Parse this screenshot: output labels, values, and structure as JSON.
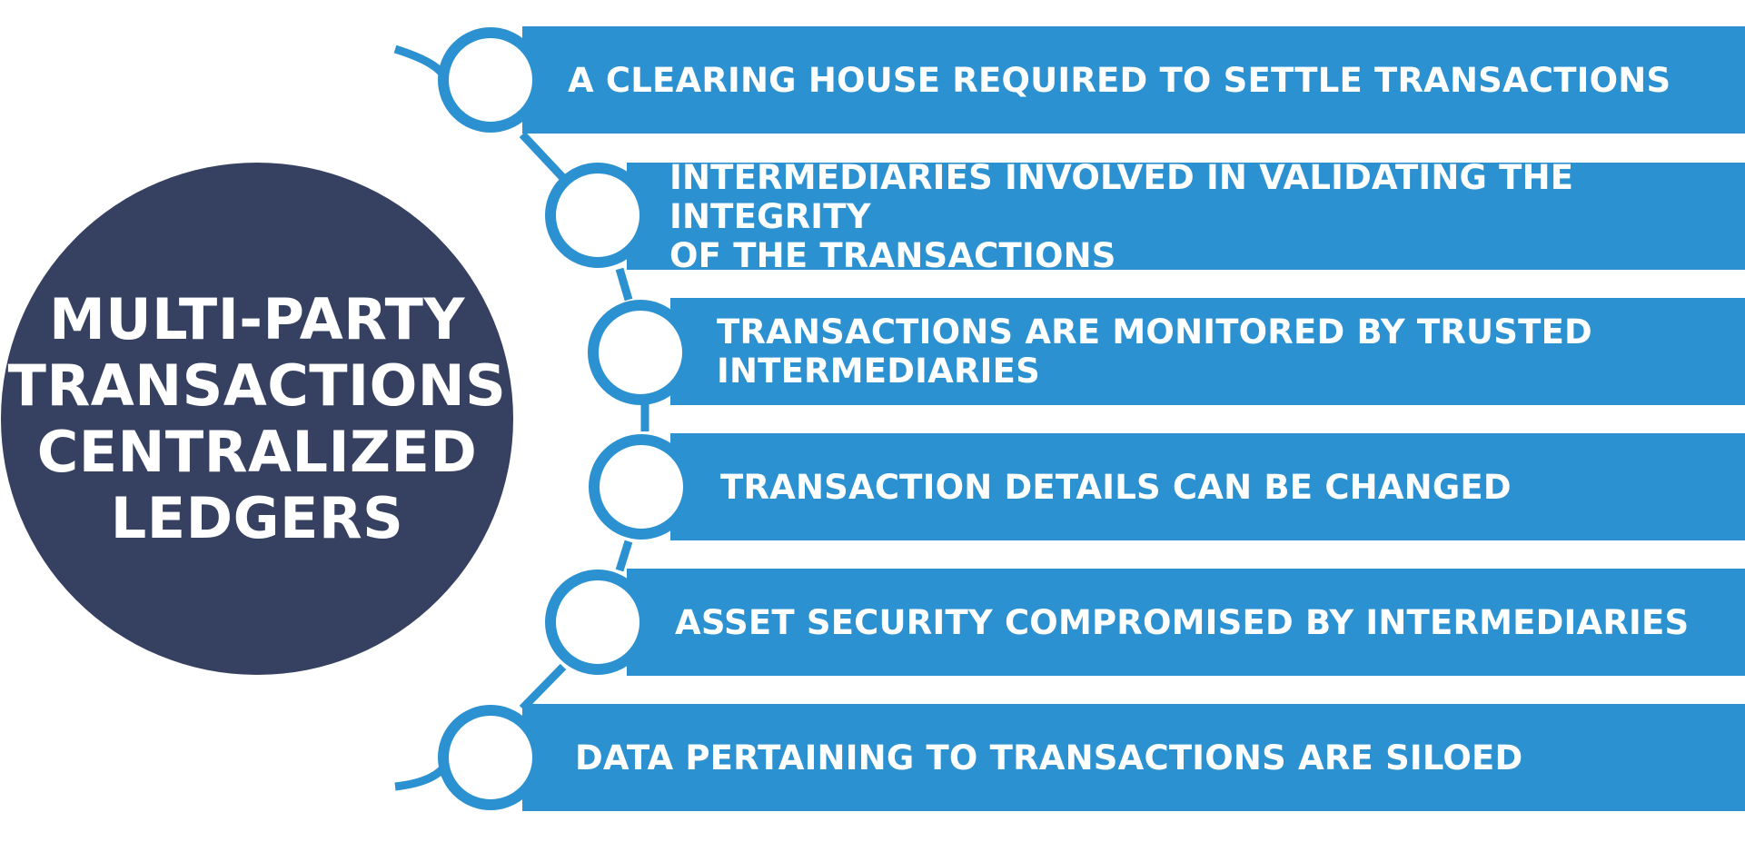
{
  "hub": {
    "lines": [
      "MULTI-PARTY",
      "TRANSACTIONS",
      "CENTRALIZED",
      "LEDGERS"
    ]
  },
  "items": [
    {
      "label": "A CLEARING HOUSE REQUIRED TO SETTLE TRANSACTIONS"
    },
    {
      "label": "INTERMEDIARIES INVOLVED IN VALIDATING THE INTEGRITY\nOF THE TRANSACTIONS"
    },
    {
      "label": "TRANSACTIONS ARE MONITORED BY TRUSTED\nINTERMEDIARIES"
    },
    {
      "label": "TRANSACTION DETAILS CAN BE CHANGED"
    },
    {
      "label": "ASSET SECURITY COMPROMISED BY INTERMEDIARIES"
    },
    {
      "label": "DATA PERTAINING TO TRANSACTIONS ARE SILOED"
    }
  ],
  "colors": {
    "hub": "#364161",
    "accent": "#2b91d1",
    "node_fill": "#ffffff",
    "text": "#ffffff"
  }
}
